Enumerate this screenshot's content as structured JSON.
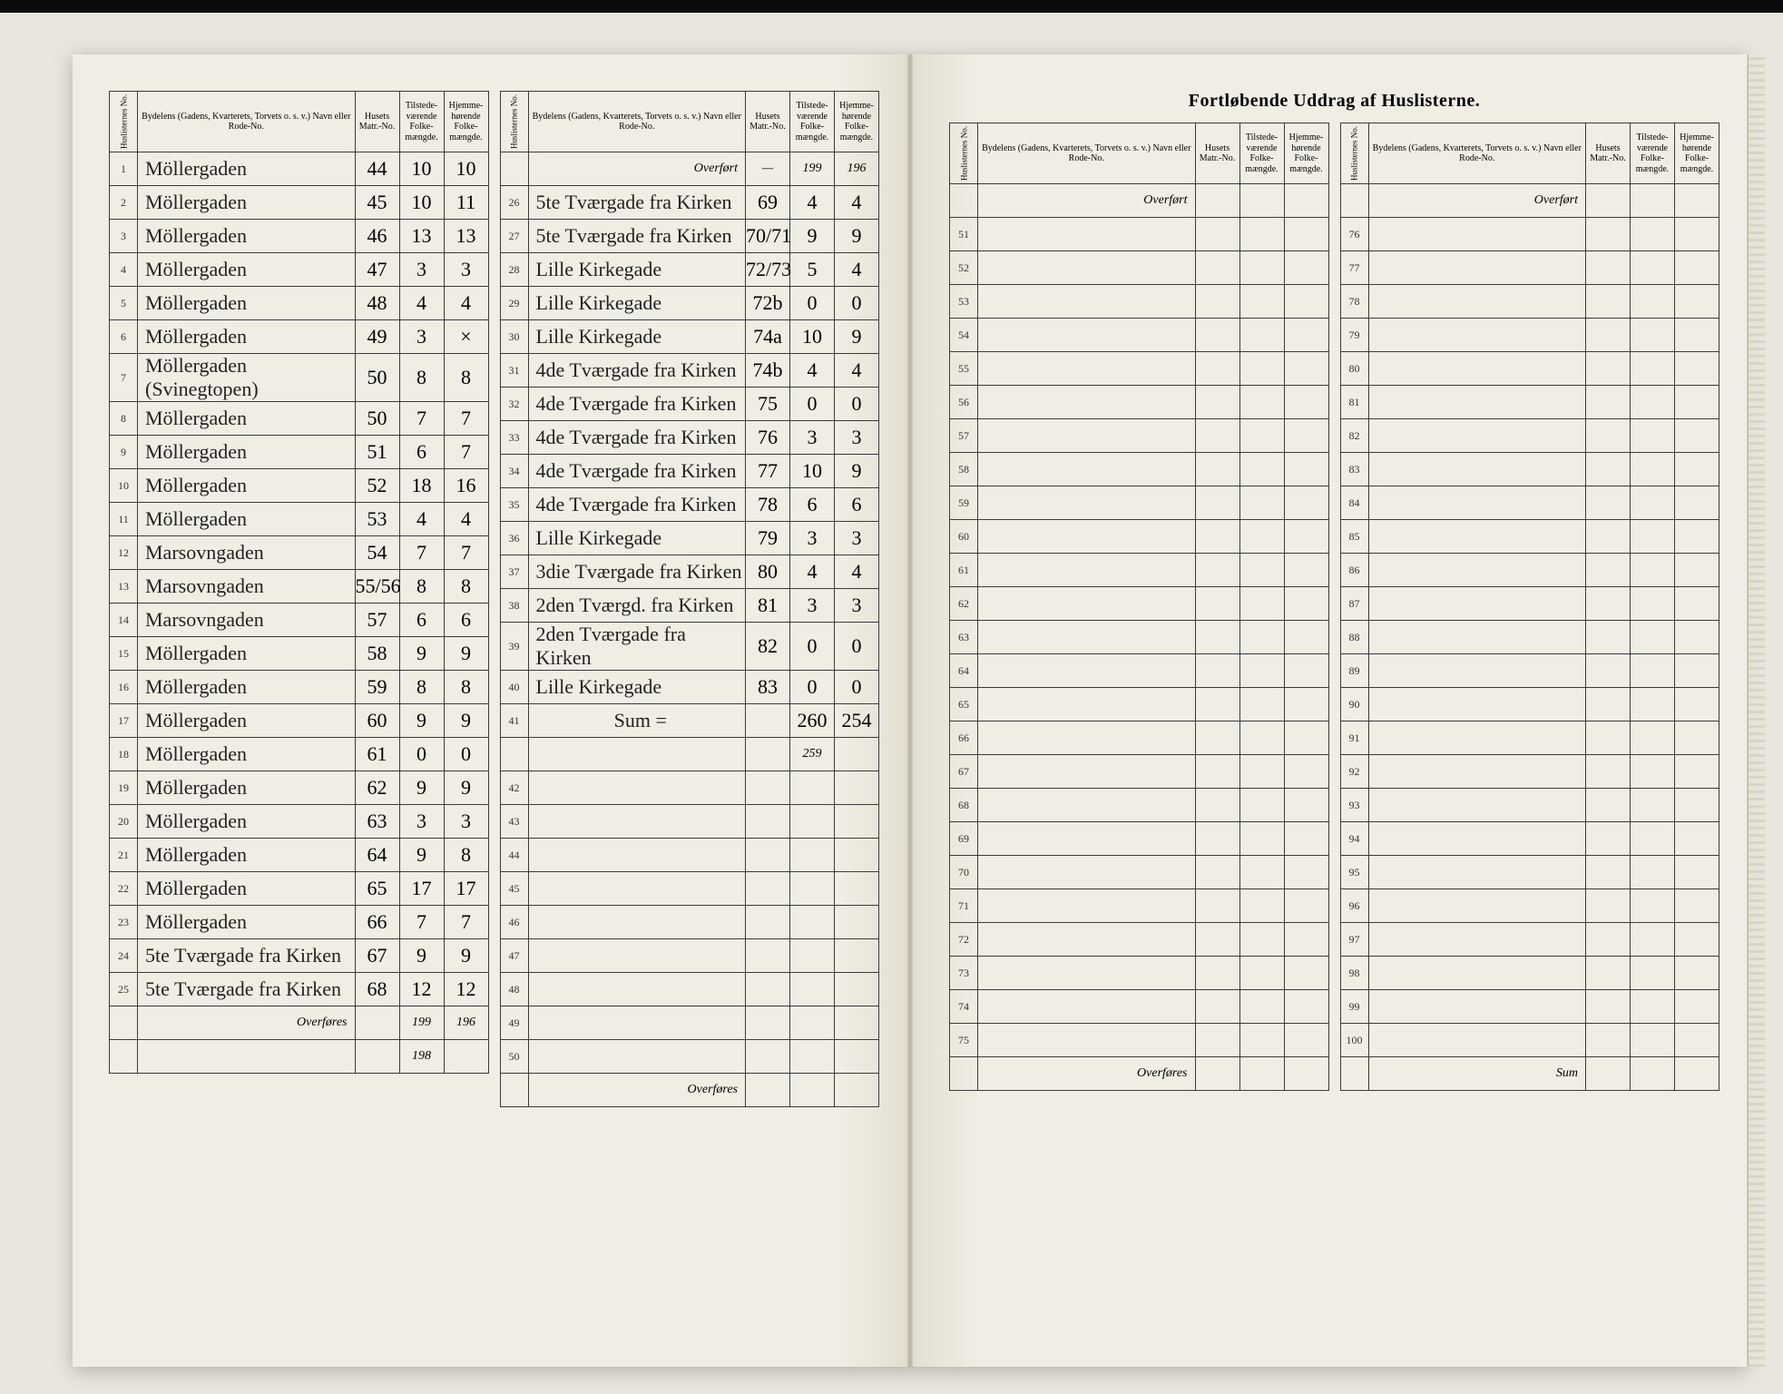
{
  "document": {
    "title": "Fortløbende Uddrag af Huslisterne.",
    "headers": {
      "idx": "Huslisternes No.",
      "name": "Bydelens (Gadens, Kvarterets, Torvets o. s. v.) Navn eller Rode-No.",
      "matr": "Husets Matr.-No.",
      "present": "Tilstede-værende Folke-mængde.",
      "belong": "Hjemme-hørende Folke-mængde."
    },
    "carry_in": "Overført",
    "carry_out": "Overføres",
    "sum_label": "Sum ="
  },
  "panelA": {
    "rows": [
      {
        "i": "1",
        "name": "Möllergaden",
        "m": "44",
        "p": "10",
        "h": "10"
      },
      {
        "i": "2",
        "name": "Möllergaden",
        "m": "45",
        "p": "10",
        "h": "11"
      },
      {
        "i": "3",
        "name": "Möllergaden",
        "m": "46",
        "p": "13",
        "h": "13"
      },
      {
        "i": "4",
        "name": "Möllergaden",
        "m": "47",
        "p": "3",
        "h": "3"
      },
      {
        "i": "5",
        "name": "Möllergaden",
        "m": "48",
        "p": "4",
        "h": "4"
      },
      {
        "i": "6",
        "name": "Möllergaden",
        "m": "49",
        "p": "3",
        "h": "×"
      },
      {
        "i": "7",
        "name": "Möllergaden (Svinegtopen)",
        "m": "50",
        "p": "8",
        "h": "8"
      },
      {
        "i": "8",
        "name": "Möllergaden",
        "m": "50",
        "p": "7",
        "h": "7"
      },
      {
        "i": "9",
        "name": "Möllergaden",
        "m": "51",
        "p": "6",
        "h": "7"
      },
      {
        "i": "10",
        "name": "Möllergaden",
        "m": "52",
        "p": "18",
        "h": "16"
      },
      {
        "i": "11",
        "name": "Möllergaden",
        "m": "53",
        "p": "4",
        "h": "4"
      },
      {
        "i": "12",
        "name": "Marsovngaden",
        "m": "54",
        "p": "7",
        "h": "7"
      },
      {
        "i": "13",
        "name": "Marsovngaden",
        "m": "55/56",
        "p": "8",
        "h": "8"
      },
      {
        "i": "14",
        "name": "Marsovngaden",
        "m": "57",
        "p": "6",
        "h": "6"
      },
      {
        "i": "15",
        "name": "Möllergaden",
        "m": "58",
        "p": "9",
        "h": "9"
      },
      {
        "i": "16",
        "name": "Möllergaden",
        "m": "59",
        "p": "8",
        "h": "8"
      },
      {
        "i": "17",
        "name": "Möllergaden",
        "m": "60",
        "p": "9",
        "h": "9"
      },
      {
        "i": "18",
        "name": "Möllergaden",
        "m": "61",
        "p": "0",
        "h": "0"
      },
      {
        "i": "19",
        "name": "Möllergaden",
        "m": "62",
        "p": "9",
        "h": "9"
      },
      {
        "i": "20",
        "name": "Möllergaden",
        "m": "63",
        "p": "3",
        "h": "3"
      },
      {
        "i": "21",
        "name": "Möllergaden",
        "m": "64",
        "p": "9",
        "h": "8"
      },
      {
        "i": "22",
        "name": "Möllergaden",
        "m": "65",
        "p": "17",
        "h": "17"
      },
      {
        "i": "23",
        "name": "Möllergaden",
        "m": "66",
        "p": "7",
        "h": "7"
      },
      {
        "i": "24",
        "name": "5te Tværgade fra Kirken",
        "m": "67",
        "p": "9",
        "h": "9"
      },
      {
        "i": "25",
        "name": "5te Tværgade fra Kirken",
        "m": "68",
        "p": "12",
        "h": "12"
      }
    ],
    "carry_out_p": "199",
    "carry_out_h": "196",
    "carry_note": "198"
  },
  "panelB": {
    "carry_in_p": "199",
    "carry_in_h": "196",
    "rows": [
      {
        "i": "26",
        "name": "5te Tværgade fra Kirken",
        "m": "69",
        "p": "4",
        "h": "4"
      },
      {
        "i": "27",
        "name": "5te Tværgade fra Kirken",
        "m": "70/71",
        "p": "9",
        "h": "9"
      },
      {
        "i": "28",
        "name": "Lille Kirkegade",
        "m": "72/73",
        "p": "5",
        "h": "4"
      },
      {
        "i": "29",
        "name": "Lille Kirkegade",
        "m": "72b",
        "p": "0",
        "h": "0"
      },
      {
        "i": "30",
        "name": "Lille Kirkegade",
        "m": "74a",
        "p": "10",
        "h": "9"
      },
      {
        "i": "31",
        "name": "4de Tværgade fra Kirken",
        "m": "74b",
        "p": "4",
        "h": "4"
      },
      {
        "i": "32",
        "name": "4de Tværgade fra Kirken",
        "m": "75",
        "p": "0",
        "h": "0"
      },
      {
        "i": "33",
        "name": "4de Tværgade fra Kirken",
        "m": "76",
        "p": "3",
        "h": "3"
      },
      {
        "i": "34",
        "name": "4de Tværgade fra Kirken",
        "m": "77",
        "p": "10",
        "h": "9"
      },
      {
        "i": "35",
        "name": "4de Tværgade fra Kirken",
        "m": "78",
        "p": "6",
        "h": "6"
      },
      {
        "i": "36",
        "name": "Lille Kirkegade",
        "m": "79",
        "p": "3",
        "h": "3"
      },
      {
        "i": "37",
        "name": "3die Tværgade fra Kirken",
        "m": "80",
        "p": "4",
        "h": "4"
      },
      {
        "i": "38",
        "name": "2den Tværgd. fra Kirken",
        "m": "81",
        "p": "3",
        "h": "3"
      },
      {
        "i": "39",
        "name": "2den Tværgade fra Kirken",
        "m": "82",
        "p": "0",
        "h": "0"
      },
      {
        "i": "40",
        "name": "Lille Kirkegade",
        "m": "83",
        "p": "0",
        "h": "0"
      }
    ],
    "sum_p": "260",
    "sum_h": "254",
    "sum_note": "259",
    "blank_rows": [
      "41",
      "42",
      "43",
      "44",
      "45",
      "46",
      "47",
      "48",
      "49",
      "50"
    ]
  },
  "panelC": {
    "rows": [
      "51",
      "52",
      "53",
      "54",
      "55",
      "56",
      "57",
      "58",
      "59",
      "60",
      "61",
      "62",
      "63",
      "64",
      "65",
      "66",
      "67",
      "68",
      "69",
      "70",
      "71",
      "72",
      "73",
      "74",
      "75"
    ]
  },
  "panelD": {
    "rows": [
      "76",
      "77",
      "78",
      "79",
      "80",
      "81",
      "82",
      "83",
      "84",
      "85",
      "86",
      "87",
      "88",
      "89",
      "90",
      "91",
      "92",
      "93",
      "94",
      "95",
      "96",
      "97",
      "98",
      "99",
      "100"
    ],
    "footer": "Sum"
  },
  "colors": {
    "paper": "#f0eee4",
    "ink": "#222222",
    "rule": "#3a3a3a",
    "bg": "#e8e6de"
  }
}
